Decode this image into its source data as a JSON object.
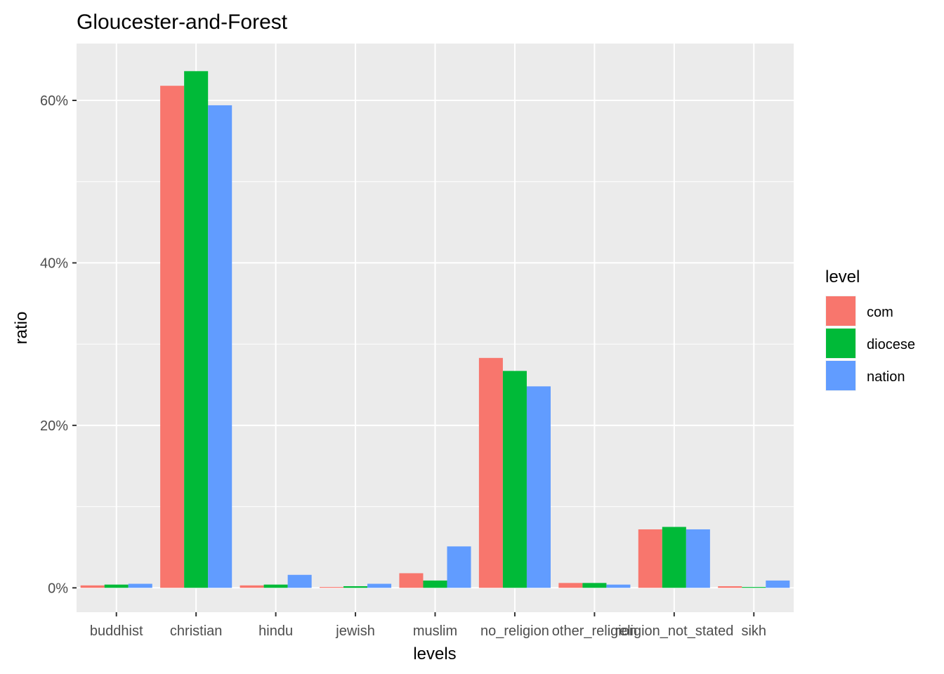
{
  "chart_data": {
    "type": "bar",
    "title": "Gloucester-and-Forest",
    "xlabel": "levels",
    "ylabel": "ratio",
    "categories": [
      "buddhist",
      "christian",
      "hindu",
      "jewish",
      "muslim",
      "no_religion",
      "other_religion",
      "religion_not_stated",
      "sikh"
    ],
    "series": [
      {
        "name": "com",
        "color": "#F8766D",
        "values": [
          0.003,
          0.618,
          0.003,
          0.001,
          0.018,
          0.283,
          0.006,
          0.072,
          0.002
        ]
      },
      {
        "name": "diocese",
        "color": "#00BA38",
        "values": [
          0.004,
          0.636,
          0.004,
          0.002,
          0.009,
          0.267,
          0.006,
          0.075,
          0.001
        ]
      },
      {
        "name": "nation",
        "color": "#619CFF",
        "values": [
          0.005,
          0.594,
          0.016,
          0.005,
          0.051,
          0.248,
          0.004,
          0.072,
          0.009
        ]
      }
    ],
    "yticks": [
      0,
      0.2,
      0.4,
      0.6
    ],
    "ytick_labels": [
      "0%",
      "20%",
      "40%",
      "60%"
    ],
    "ylim": [
      -0.03,
      0.67
    ],
    "grid": true,
    "panel_background": "#EBEBEB",
    "legend": {
      "title": "level",
      "position": "right"
    }
  }
}
